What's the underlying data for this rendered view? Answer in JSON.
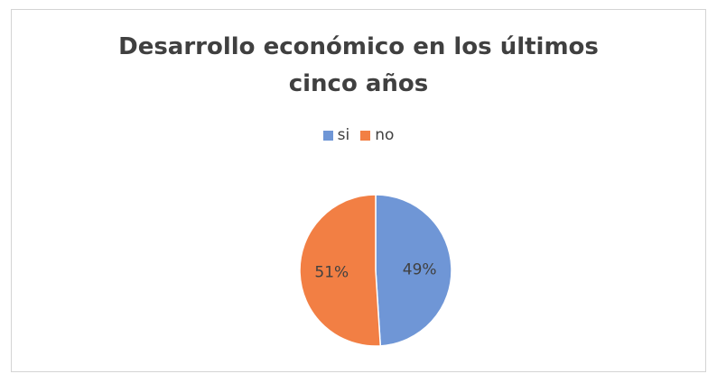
{
  "chart_data": {
    "type": "pie",
    "title": "Desarrollo económico en los últimos cinco años",
    "title_lines": [
      "Desarrollo económico en los últimos",
      "cinco años"
    ],
    "legend_position": "top",
    "slices": [
      {
        "name": "si",
        "value": 49,
        "label": "49%",
        "color": "#6f96d6"
      },
      {
        "name": "no",
        "value": 51,
        "label": "51%",
        "color": "#f27f44"
      }
    ]
  }
}
